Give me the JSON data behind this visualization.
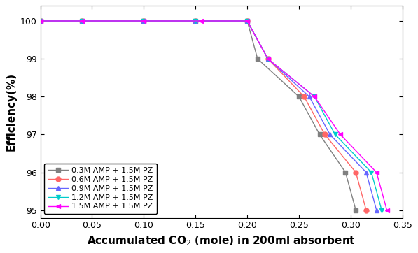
{
  "series": [
    {
      "label": "0.3M AMP + 1.5M PZ",
      "color": "#808080",
      "marker": "s",
      "x": [
        0.0,
        0.04,
        0.1,
        0.15,
        0.2,
        0.21,
        0.25,
        0.27,
        0.295,
        0.305
      ],
      "y": [
        100,
        100,
        100,
        100,
        100,
        99,
        98,
        97,
        96,
        95
      ]
    },
    {
      "label": "0.6M AMP + 1.5M PZ",
      "color": "#ff6666",
      "marker": "o",
      "x": [
        0.0,
        0.04,
        0.1,
        0.15,
        0.2,
        0.22,
        0.255,
        0.275,
        0.305,
        0.315
      ],
      "y": [
        100,
        100,
        100,
        100,
        100,
        99,
        98,
        97,
        96,
        95
      ]
    },
    {
      "label": "0.9M AMP + 1.5M PZ",
      "color": "#6666ff",
      "marker": "^",
      "x": [
        0.0,
        0.04,
        0.1,
        0.15,
        0.2,
        0.22,
        0.26,
        0.28,
        0.315,
        0.325
      ],
      "y": [
        100,
        100,
        100,
        100,
        100,
        99,
        98,
        97,
        96,
        95
      ]
    },
    {
      "label": "1.2M AMP + 1.5M PZ",
      "color": "#00cccc",
      "marker": "v",
      "x": [
        0.0,
        0.04,
        0.1,
        0.15,
        0.2,
        0.22,
        0.265,
        0.285,
        0.32,
        0.33
      ],
      "y": [
        100,
        100,
        100,
        100,
        100,
        99,
        98,
        97,
        96,
        95
      ]
    },
    {
      "label": "1.5M AMP + 1.5M PZ",
      "color": "#ff00ff",
      "marker": "<",
      "x": [
        0.0,
        0.04,
        0.1,
        0.155,
        0.2,
        0.22,
        0.265,
        0.29,
        0.325,
        0.335
      ],
      "y": [
        100,
        100,
        100,
        100,
        100,
        99,
        98,
        97,
        96,
        95
      ]
    }
  ],
  "xlabel": "Accumulated CO$_2$ (mole) in 200ml absorbent",
  "ylabel": "Efficiency(%)",
  "xlim": [
    0.0,
    0.35
  ],
  "ylim": [
    94.8,
    100.4
  ],
  "xticks": [
    0.0,
    0.05,
    0.1,
    0.15,
    0.2,
    0.25,
    0.3,
    0.35
  ],
  "yticks": [
    95,
    96,
    97,
    98,
    99,
    100
  ],
  "legend_loc": "lower left",
  "markersize": 5,
  "linewidth": 1.0,
  "figure_width": 5.97,
  "figure_height": 3.62,
  "dpi": 100
}
